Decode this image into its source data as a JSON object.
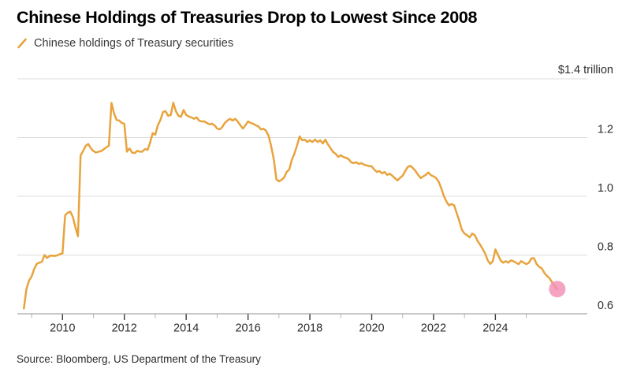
{
  "header": {
    "title": "Chinese Holdings of Treasuries Drop to Lowest Since 2008",
    "legend": {
      "label": "Chinese holdings of Treasury securities",
      "marker_color": "#E8A33D"
    }
  },
  "chart_data": {
    "type": "line",
    "title": "Chinese Holdings of Treasuries Drop to Lowest Since 2008",
    "series_name": "Chinese holdings of Treasury securities",
    "unit": "USD billions",
    "frequency": "monthly",
    "start_month": "2008-09",
    "end_month": "2025-12",
    "line_color": "#E8A33D",
    "grid": true,
    "legend_position": "top-left",
    "values_usd_billion": [
      618,
      684,
      713,
      727,
      752,
      770,
      774,
      777,
      800,
      790,
      797,
      798,
      797,
      799,
      803,
      806,
      935,
      944,
      948,
      930,
      895,
      864,
      1139,
      1154,
      1172,
      1178,
      1163,
      1154,
      1149,
      1152,
      1154,
      1160,
      1167,
      1172,
      1318,
      1282,
      1260,
      1258,
      1250,
      1247,
      1152,
      1163,
      1149,
      1147,
      1155,
      1152,
      1152,
      1161,
      1158,
      1183,
      1215,
      1210,
      1242,
      1260,
      1287,
      1290,
      1274,
      1277,
      1319,
      1290,
      1274,
      1271,
      1294,
      1277,
      1272,
      1269,
      1264,
      1269,
      1258,
      1255,
      1255,
      1250,
      1245,
      1247,
      1242,
      1231,
      1228,
      1236,
      1250,
      1258,
      1264,
      1258,
      1264,
      1255,
      1242,
      1231,
      1242,
      1255,
      1250,
      1247,
      1242,
      1238,
      1228,
      1230,
      1223,
      1205,
      1170,
      1126,
      1058,
      1051,
      1056,
      1064,
      1083,
      1091,
      1124,
      1145,
      1172,
      1204,
      1191,
      1193,
      1185,
      1191,
      1185,
      1193,
      1185,
      1191,
      1180,
      1193,
      1177,
      1164,
      1151,
      1145,
      1134,
      1140,
      1134,
      1131,
      1127,
      1116,
      1113,
      1116,
      1110,
      1113,
      1108,
      1105,
      1103,
      1102,
      1091,
      1083,
      1086,
      1078,
      1083,
      1073,
      1077,
      1070,
      1062,
      1054,
      1063,
      1070,
      1086,
      1100,
      1104,
      1096,
      1086,
      1073,
      1062,
      1068,
      1073,
      1081,
      1072,
      1068,
      1062,
      1049,
      1028,
      1001,
      982,
      969,
      974,
      969,
      942,
      916,
      886,
      873,
      868,
      860,
      873,
      868,
      849,
      836,
      822,
      806,
      782,
      770,
      779,
      819,
      801,
      782,
      774,
      779,
      774,
      782,
      779,
      774,
      769,
      779,
      774,
      769,
      774,
      789,
      789,
      769,
      760,
      755,
      739,
      729,
      721,
      707,
      694,
      684
    ],
    "end_point": {
      "month": "2025-12",
      "value_usd_billion": 684,
      "marker_color": "#F28FB4"
    },
    "y_axis": {
      "top_label": {
        "label": "$1.4 trillion",
        "value": 1.4
      },
      "ticks": [
        {
          "label": "1.2",
          "value": 1.2
        },
        {
          "label": "1.0",
          "value": 1.0
        },
        {
          "label": "0.8",
          "value": 0.8
        },
        {
          "label": "0.6",
          "value": 0.6
        }
      ],
      "gridline_values": [
        1.4,
        1.2,
        1.0,
        0.8
      ],
      "ylim": [
        0.6,
        1.4
      ]
    },
    "x_axis": {
      "major_ticks": [
        {
          "label": "2010",
          "year": 2010
        },
        {
          "label": "2012",
          "year": 2012
        },
        {
          "label": "2014",
          "year": 2014
        },
        {
          "label": "2016",
          "year": 2016
        },
        {
          "label": "2018",
          "year": 2018
        },
        {
          "label": "2020",
          "year": 2020
        },
        {
          "label": "2022",
          "year": 2022
        },
        {
          "label": "2024",
          "year": 2024
        }
      ],
      "minor_tick_years": [
        2009,
        2011,
        2013,
        2015,
        2017,
        2019,
        2021,
        2023,
        2025
      ],
      "xlim_years": [
        2008.55,
        2026.95
      ]
    },
    "colors": {
      "gridline": "#DCDCDC",
      "axis_line": "#A6A6A6",
      "major_tick": "#3C3C3C",
      "minor_tick": "#B5B5B5",
      "tick_label": "#2D2D2D"
    }
  },
  "footer": {
    "source": "Source: Bloomberg, US Department of the Treasury"
  }
}
